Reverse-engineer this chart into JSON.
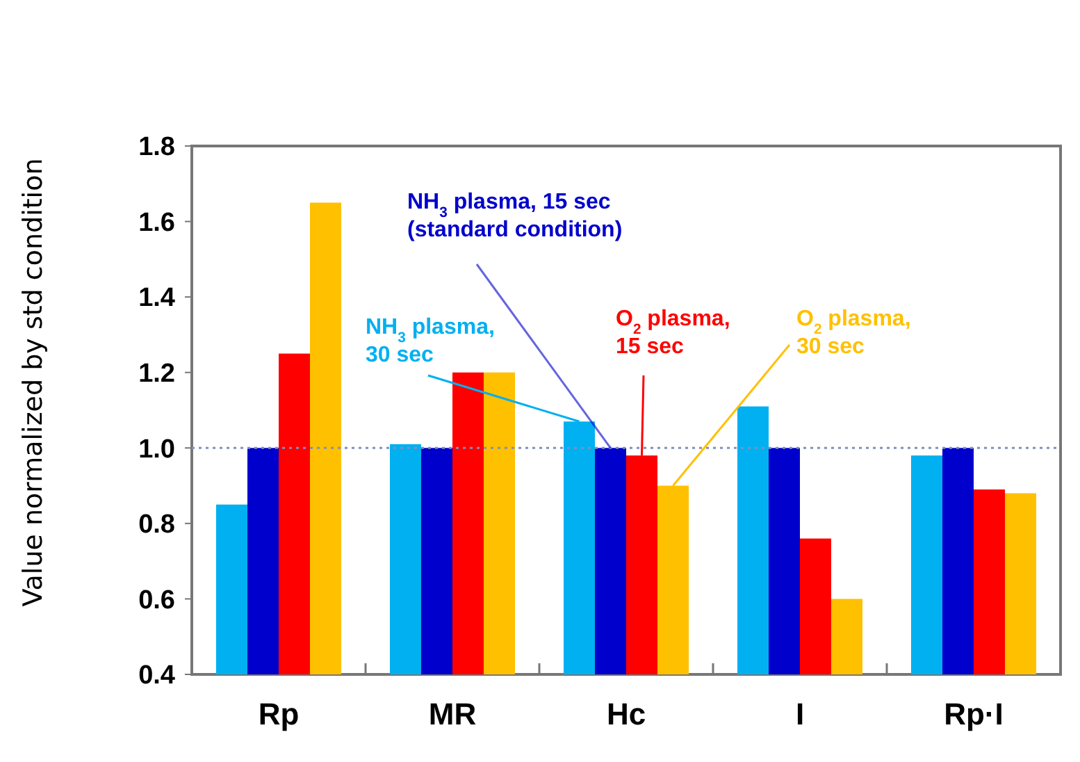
{
  "chart_data": {
    "type": "bar",
    "ylabel": "Value normalized by std condition",
    "categories": [
      "Rp",
      "MR",
      "Hc",
      "I",
      "Rp·I"
    ],
    "series": [
      {
        "name": "NH$_{3}$ plasma, 30 sec",
        "color": "#00b0f0",
        "values": [
          0.85,
          1.01,
          1.07,
          1.11,
          0.98
        ]
      },
      {
        "name": "NH$_{3}$ plasma, 15 sec (standard condition)",
        "color": "#0000cc",
        "values": [
          1.0,
          1.0,
          1.0,
          1.0,
          1.0
        ]
      },
      {
        "name": "O$_{2}$ plasma, 15 sec",
        "color": "#ff0000",
        "values": [
          1.25,
          1.2,
          0.98,
          0.76,
          0.89
        ]
      },
      {
        "name": "O$_{2}$ plasma, 30 sec",
        "color": "#ffc000",
        "values": [
          1.65,
          1.2,
          0.9,
          0.6,
          0.88
        ]
      }
    ],
    "ylim": [
      0.4,
      1.8
    ],
    "yticks": [
      0.4,
      0.6,
      0.8,
      {
        "value": 1,
        "label": "1.0"
      },
      1.2,
      1.4,
      1.6,
      1.8
    ],
    "ref_lines": [
      {
        "axis": "y",
        "value": 1.0,
        "color": "#8090c0",
        "line_style": "dotted"
      }
    ],
    "grid": false,
    "legend": false
  }
}
